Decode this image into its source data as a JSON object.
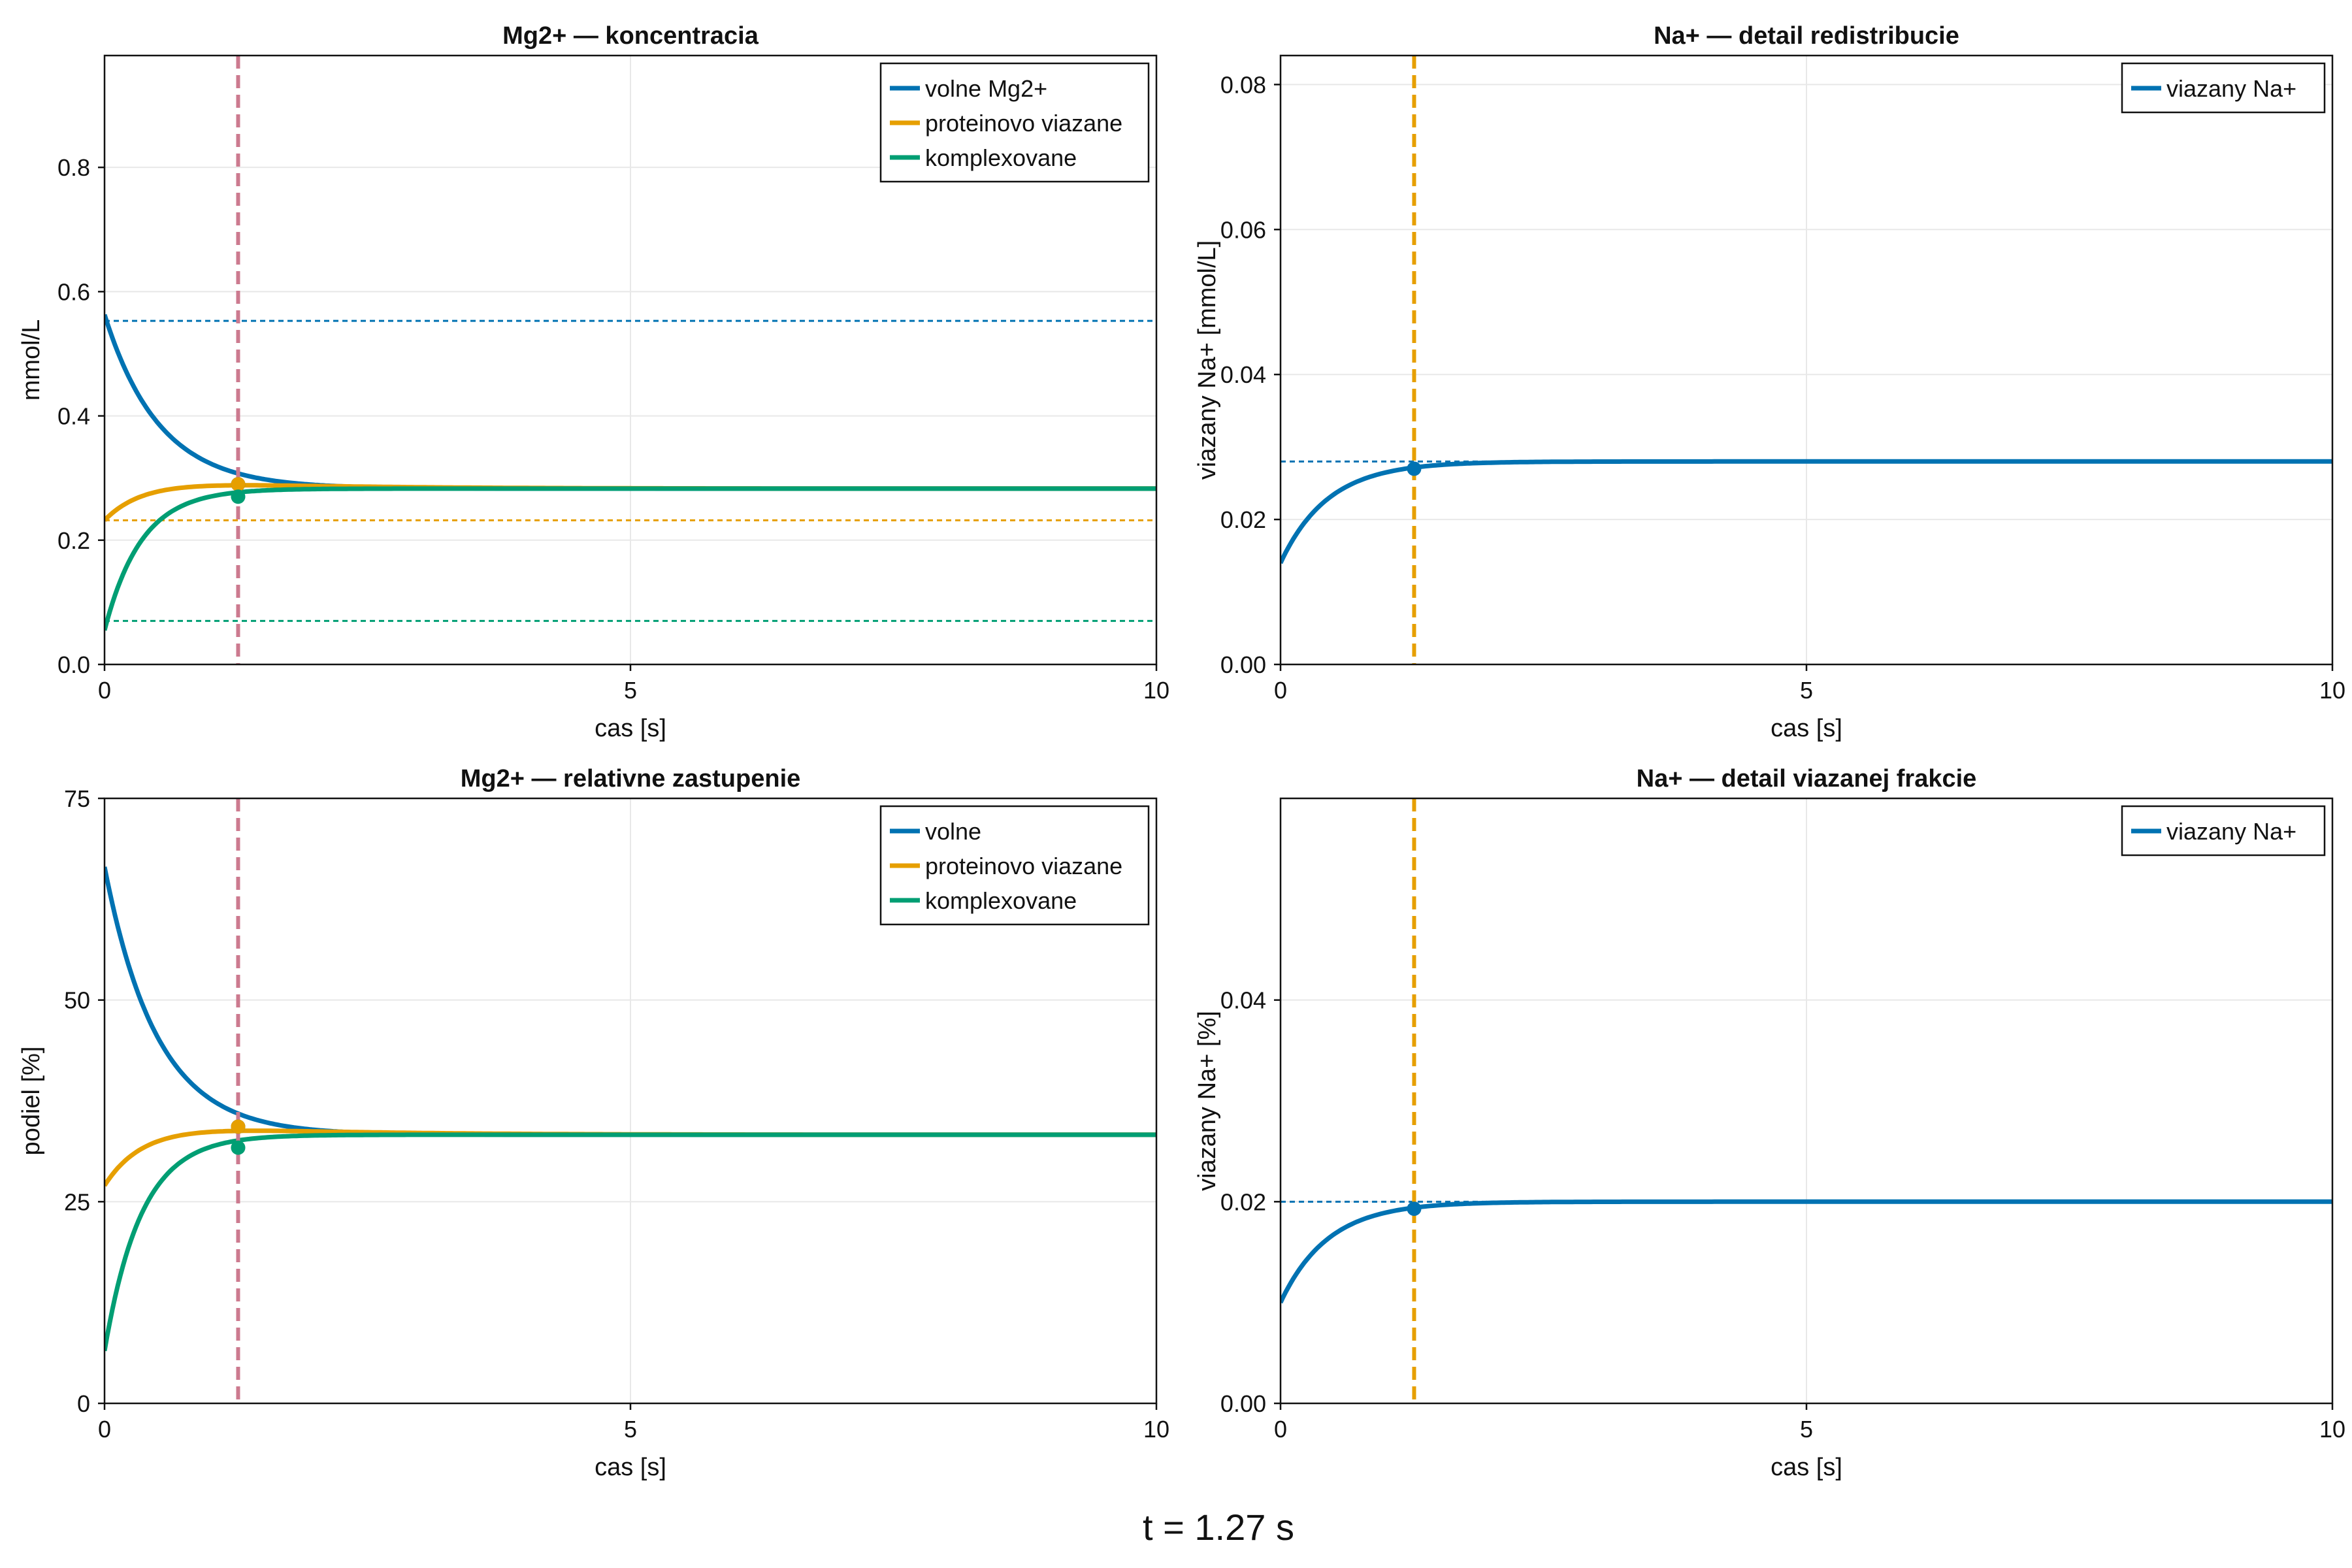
{
  "footer_text": "t = 1.27 s",
  "colors": {
    "blue": "#0072b2",
    "orange": "#e69f00",
    "green": "#009e73",
    "marker_pink": "#cc7a8f",
    "grid": "#e8e8e8"
  },
  "chart_data": [
    {
      "type": "line",
      "title": "Mg2+ — koncentracia",
      "xlabel": "cas [s]",
      "ylabel": "mmol/L",
      "xlim": [
        0,
        10
      ],
      "ylim": [
        0,
        0.98
      ],
      "xticks": [
        0,
        5,
        10
      ],
      "xtick_labels": [
        "0",
        "5",
        "10"
      ],
      "yticks": [
        0,
        0.2,
        0.4,
        0.6,
        0.8
      ],
      "ytick_labels": [
        "0.0",
        "0.2",
        "0.4",
        "0.6",
        "0.8"
      ],
      "grid": true,
      "legend_position": "top-right",
      "time_marker": {
        "x": 1.27,
        "color": "#cc7a8f"
      },
      "series": [
        {
          "name": "volne Mg2+",
          "color": "#0072b2",
          "y0": 0.563,
          "yinf": 0.283,
          "tau": 0.52,
          "overshoot": 0,
          "ref_line": 0.553,
          "marker_y": 0.29
        },
        {
          "name": "proteinovo viazane",
          "color": "#e69f00",
          "y0": 0.232,
          "yinf": 0.283,
          "tau": 0.4,
          "overshoot": 0.012,
          "ref_line": 0.232,
          "marker_y": 0.29
        },
        {
          "name": "komplexovane",
          "color": "#009e73",
          "y0": 0.055,
          "yinf": 0.283,
          "tau": 0.35,
          "overshoot": 0,
          "ref_line": 0.07,
          "marker_y": 0.27
        }
      ]
    },
    {
      "type": "line",
      "title": "Na+ — detail redistribucie",
      "xlabel": "cas [s]",
      "ylabel": "viazany Na+ [mmol/L]",
      "xlim": [
        0,
        10
      ],
      "ylim": [
        0,
        0.084
      ],
      "xticks": [
        0,
        5,
        10
      ],
      "xtick_labels": [
        "0",
        "5",
        "10"
      ],
      "yticks": [
        0,
        0.02,
        0.04,
        0.06,
        0.08
      ],
      "ytick_labels": [
        "0.00",
        "0.02",
        "0.04",
        "0.06",
        "0.08"
      ],
      "grid": true,
      "legend_position": "top-right",
      "time_marker": {
        "x": 1.27,
        "color": "#e69f00"
      },
      "series": [
        {
          "name": "viazany Na+",
          "color": "#0072b2",
          "y0": 0.014,
          "yinf": 0.028,
          "tau": 0.45,
          "overshoot": 0,
          "ref_line": 0.028,
          "marker_y": 0.027
        }
      ]
    },
    {
      "type": "line",
      "title": "Mg2+ — relativne zastupenie",
      "xlabel": "cas [s]",
      "ylabel": "podiel [%]",
      "xlim": [
        0,
        10
      ],
      "ylim": [
        0,
        75
      ],
      "xticks": [
        0,
        5,
        10
      ],
      "xtick_labels": [
        "0",
        "5",
        "10"
      ],
      "yticks": [
        0,
        25,
        50,
        75
      ],
      "ytick_labels": [
        "0",
        "25",
        "50",
        "75"
      ],
      "grid": true,
      "legend_position": "top-right",
      "time_marker": {
        "x": 1.27,
        "color": "#cc7a8f"
      },
      "series": [
        {
          "name": "volne",
          "color": "#0072b2",
          "y0": 66.5,
          "yinf": 33.3,
          "tau": 0.5,
          "overshoot": 0,
          "ref_line": null,
          "marker_y": 34.3
        },
        {
          "name": "proteinovo viazane",
          "color": "#e69f00",
          "y0": 27.0,
          "yinf": 33.3,
          "tau": 0.4,
          "overshoot": 1.2,
          "ref_line": null,
          "marker_y": 34.3
        },
        {
          "name": "komplexovane",
          "color": "#009e73",
          "y0": 6.5,
          "yinf": 33.3,
          "tau": 0.35,
          "overshoot": 0,
          "ref_line": null,
          "marker_y": 31.7
        }
      ]
    },
    {
      "type": "line",
      "title": "Na+ — detail viazanej frakcie",
      "xlabel": "cas [s]",
      "ylabel": "viazany Na+ [%]",
      "xlim": [
        0,
        10
      ],
      "ylim": [
        0,
        0.06
      ],
      "xticks": [
        0,
        5,
        10
      ],
      "xtick_labels": [
        "0",
        "5",
        "10"
      ],
      "yticks": [
        0,
        0.02,
        0.04
      ],
      "ytick_labels": [
        "0.00",
        "0.02",
        "0.04"
      ],
      "grid": true,
      "legend_position": "top-right",
      "time_marker": {
        "x": 1.27,
        "color": "#e69f00"
      },
      "series": [
        {
          "name": "viazany Na+",
          "color": "#0072b2",
          "y0": 0.01,
          "yinf": 0.02,
          "tau": 0.45,
          "overshoot": 0,
          "ref_line": 0.02,
          "marker_y": 0.0193
        }
      ]
    }
  ]
}
